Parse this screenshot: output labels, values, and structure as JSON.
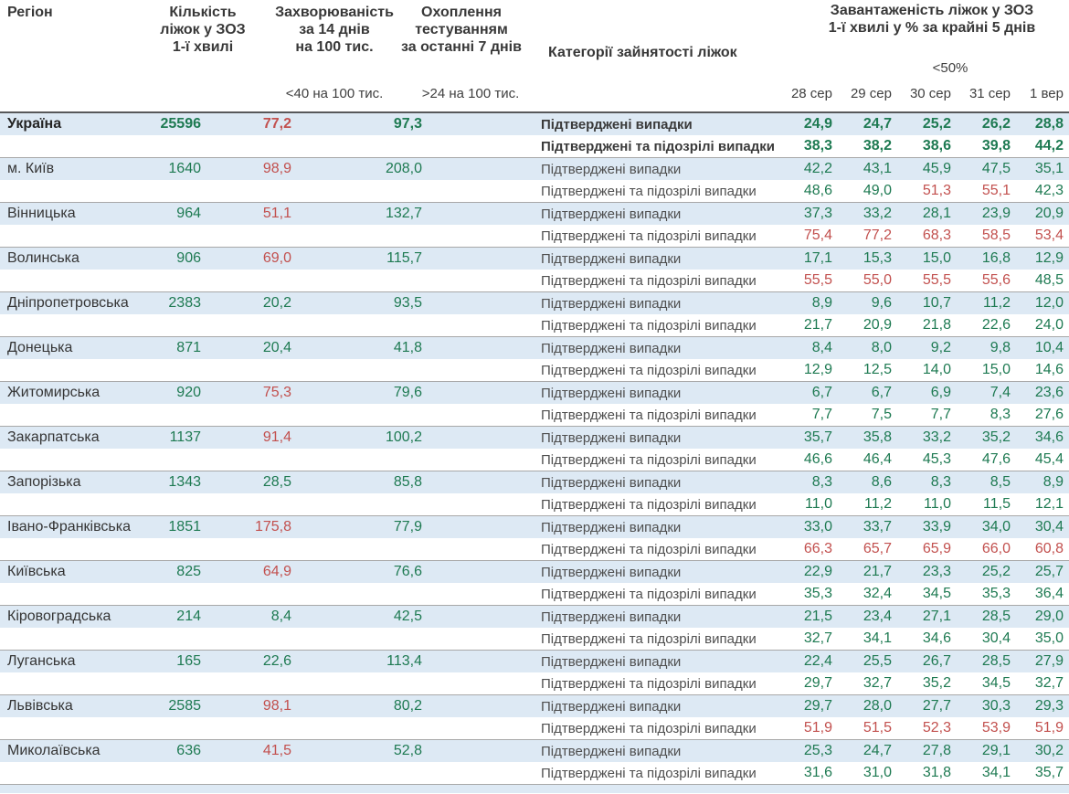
{
  "header": {
    "region": "Регіон",
    "beds_lines": [
      "Кількість",
      "ліжок у ЗОЗ",
      "1-ї хвилі"
    ],
    "incidence_lines": [
      "Захворюваність",
      "за 14 днів",
      "на 100 тис."
    ],
    "testing_lines": [
      "Охоплення",
      "тестуванням",
      "за останні 7 днів"
    ],
    "categories": "Категорії зайнятості ліжок",
    "occupancy_lines": [
      "Завантаженість ліжок у ЗОЗ",
      "1-ї хвилі у % за крайні 5 днів"
    ],
    "incidence_threshold": "<40 на 100 тис.",
    "testing_threshold": ">24 на 100 тис.",
    "occupancy_threshold": "<50%",
    "dates": [
      "28 сер",
      "29 сер",
      "30 сер",
      "31 сер",
      "1 вер"
    ]
  },
  "category_labels": {
    "confirmed": "Підтверджені випадки",
    "confirmed_suspected": "Підтверджені та підозрілі випадки"
  },
  "colors": {
    "ok": "#1e7a52",
    "alert": "#c2504e",
    "band": "#dde9f4",
    "separator": "#a8a8a8",
    "header_rule": "#57585a"
  },
  "rows": [
    {
      "name": "Україна",
      "bold": true,
      "beds": "25596",
      "incidence": "77,2",
      "incidence_color": "alert",
      "testing": "97,3",
      "confirmed": [
        "24,9",
        "24,7",
        "25,2",
        "26,2",
        "28,8"
      ],
      "confirmed_colors": [
        "ok",
        "ok",
        "ok",
        "ok",
        "ok"
      ],
      "suspected": [
        "38,3",
        "38,2",
        "38,6",
        "39,8",
        "44,2"
      ],
      "suspected_colors": [
        "ok",
        "ok",
        "ok",
        "ok",
        "ok"
      ]
    },
    {
      "name": "м. Київ",
      "bold": false,
      "beds": "1640",
      "incidence": "98,9",
      "incidence_color": "alert",
      "testing": "208,0",
      "confirmed": [
        "42,2",
        "43,1",
        "45,9",
        "47,5",
        "35,1"
      ],
      "confirmed_colors": [
        "ok",
        "ok",
        "ok",
        "ok",
        "ok"
      ],
      "suspected": [
        "48,6",
        "49,0",
        "51,3",
        "55,1",
        "42,3"
      ],
      "suspected_colors": [
        "ok",
        "ok",
        "alert",
        "alert",
        "ok"
      ]
    },
    {
      "name": "Вінницька",
      "bold": false,
      "beds": "964",
      "incidence": "51,1",
      "incidence_color": "alert",
      "testing": "132,7",
      "confirmed": [
        "37,3",
        "33,2",
        "28,1",
        "23,9",
        "20,9"
      ],
      "confirmed_colors": [
        "ok",
        "ok",
        "ok",
        "ok",
        "ok"
      ],
      "suspected": [
        "75,4",
        "77,2",
        "68,3",
        "58,5",
        "53,4"
      ],
      "suspected_colors": [
        "alert",
        "alert",
        "alert",
        "alert",
        "alert"
      ]
    },
    {
      "name": "Волинська",
      "bold": false,
      "beds": "906",
      "incidence": "69,0",
      "incidence_color": "alert",
      "testing": "115,7",
      "confirmed": [
        "17,1",
        "15,3",
        "15,0",
        "16,8",
        "12,9"
      ],
      "confirmed_colors": [
        "ok",
        "ok",
        "ok",
        "ok",
        "ok"
      ],
      "suspected": [
        "55,5",
        "55,0",
        "55,5",
        "55,6",
        "48,5"
      ],
      "suspected_colors": [
        "alert",
        "alert",
        "alert",
        "alert",
        "ok"
      ]
    },
    {
      "name": "Дніпропетровська",
      "bold": false,
      "beds": "2383",
      "incidence": "20,2",
      "incidence_color": "ok",
      "testing": "93,5",
      "confirmed": [
        "8,9",
        "9,6",
        "10,7",
        "11,2",
        "12,0"
      ],
      "confirmed_colors": [
        "ok",
        "ok",
        "ok",
        "ok",
        "ok"
      ],
      "suspected": [
        "21,7",
        "20,9",
        "21,8",
        "22,6",
        "24,0"
      ],
      "suspected_colors": [
        "ok",
        "ok",
        "ok",
        "ok",
        "ok"
      ]
    },
    {
      "name": "Донецька",
      "bold": false,
      "beds": "871",
      "incidence": "20,4",
      "incidence_color": "ok",
      "testing": "41,8",
      "confirmed": [
        "8,4",
        "8,0",
        "9,2",
        "9,8",
        "10,4"
      ],
      "confirmed_colors": [
        "ok",
        "ok",
        "ok",
        "ok",
        "ok"
      ],
      "suspected": [
        "12,9",
        "12,5",
        "14,0",
        "15,0",
        "14,6"
      ],
      "suspected_colors": [
        "ok",
        "ok",
        "ok",
        "ok",
        "ok"
      ]
    },
    {
      "name": "Житомирська",
      "bold": false,
      "beds": "920",
      "incidence": "75,3",
      "incidence_color": "alert",
      "testing": "79,6",
      "confirmed": [
        "6,7",
        "6,7",
        "6,9",
        "7,4",
        "23,6"
      ],
      "confirmed_colors": [
        "ok",
        "ok",
        "ok",
        "ok",
        "ok"
      ],
      "suspected": [
        "7,7",
        "7,5",
        "7,7",
        "8,3",
        "27,6"
      ],
      "suspected_colors": [
        "ok",
        "ok",
        "ok",
        "ok",
        "ok"
      ]
    },
    {
      "name": "Закарпатська",
      "bold": false,
      "beds": "1137",
      "incidence": "91,4",
      "incidence_color": "alert",
      "testing": "100,2",
      "confirmed": [
        "35,7",
        "35,8",
        "33,2",
        "35,2",
        "34,6"
      ],
      "confirmed_colors": [
        "ok",
        "ok",
        "ok",
        "ok",
        "ok"
      ],
      "suspected": [
        "46,6",
        "46,4",
        "45,3",
        "47,6",
        "45,4"
      ],
      "suspected_colors": [
        "ok",
        "ok",
        "ok",
        "ok",
        "ok"
      ]
    },
    {
      "name": "Запорізька",
      "bold": false,
      "beds": "1343",
      "incidence": "28,5",
      "incidence_color": "ok",
      "testing": "85,8",
      "confirmed": [
        "8,3",
        "8,6",
        "8,3",
        "8,5",
        "8,9"
      ],
      "confirmed_colors": [
        "ok",
        "ok",
        "ok",
        "ok",
        "ok"
      ],
      "suspected": [
        "11,0",
        "11,2",
        "11,0",
        "11,5",
        "12,1"
      ],
      "suspected_colors": [
        "ok",
        "ok",
        "ok",
        "ok",
        "ok"
      ]
    },
    {
      "name": "Івано-Франківська",
      "bold": false,
      "beds": "1851",
      "incidence": "175,8",
      "incidence_color": "alert",
      "testing": "77,9",
      "confirmed": [
        "33,0",
        "33,7",
        "33,9",
        "34,0",
        "30,4"
      ],
      "confirmed_colors": [
        "ok",
        "ok",
        "ok",
        "ok",
        "ok"
      ],
      "suspected": [
        "66,3",
        "65,7",
        "65,9",
        "66,0",
        "60,8"
      ],
      "suspected_colors": [
        "alert",
        "alert",
        "alert",
        "alert",
        "alert"
      ]
    },
    {
      "name": "Київська",
      "bold": false,
      "beds": "825",
      "incidence": "64,9",
      "incidence_color": "alert",
      "testing": "76,6",
      "confirmed": [
        "22,9",
        "21,7",
        "23,3",
        "25,2",
        "25,7"
      ],
      "confirmed_colors": [
        "ok",
        "ok",
        "ok",
        "ok",
        "ok"
      ],
      "suspected": [
        "35,3",
        "32,4",
        "34,5",
        "35,3",
        "36,4"
      ],
      "suspected_colors": [
        "ok",
        "ok",
        "ok",
        "ok",
        "ok"
      ]
    },
    {
      "name": "Кіровоградська",
      "bold": false,
      "beds": "214",
      "incidence": "8,4",
      "incidence_color": "ok",
      "testing": "42,5",
      "confirmed": [
        "21,5",
        "23,4",
        "27,1",
        "28,5",
        "29,0"
      ],
      "confirmed_colors": [
        "ok",
        "ok",
        "ok",
        "ok",
        "ok"
      ],
      "suspected": [
        "32,7",
        "34,1",
        "34,6",
        "30,4",
        "35,0"
      ],
      "suspected_colors": [
        "ok",
        "ok",
        "ok",
        "ok",
        "ok"
      ]
    },
    {
      "name": "Луганська",
      "bold": false,
      "beds": "165",
      "incidence": "22,6",
      "incidence_color": "ok",
      "testing": "113,4",
      "confirmed": [
        "22,4",
        "25,5",
        "26,7",
        "28,5",
        "27,9"
      ],
      "confirmed_colors": [
        "ok",
        "ok",
        "ok",
        "ok",
        "ok"
      ],
      "suspected": [
        "29,7",
        "32,7",
        "35,2",
        "34,5",
        "32,7"
      ],
      "suspected_colors": [
        "ok",
        "ok",
        "ok",
        "ok",
        "ok"
      ]
    },
    {
      "name": "Львівська",
      "bold": false,
      "beds": "2585",
      "incidence": "98,1",
      "incidence_color": "alert",
      "testing": "80,2",
      "confirmed": [
        "29,7",
        "28,0",
        "27,7",
        "30,3",
        "29,3"
      ],
      "confirmed_colors": [
        "ok",
        "ok",
        "ok",
        "ok",
        "ok"
      ],
      "suspected": [
        "51,9",
        "51,5",
        "52,3",
        "53,9",
        "51,9"
      ],
      "suspected_colors": [
        "alert",
        "alert",
        "alert",
        "alert",
        "alert"
      ]
    },
    {
      "name": "Миколаївська",
      "bold": false,
      "beds": "636",
      "incidence": "41,5",
      "incidence_color": "alert",
      "testing": "52,8",
      "confirmed": [
        "25,3",
        "24,7",
        "27,8",
        "29,1",
        "30,2"
      ],
      "confirmed_colors": [
        "ok",
        "ok",
        "ok",
        "ok",
        "ok"
      ],
      "suspected": [
        "31,6",
        "31,0",
        "31,8",
        "34,1",
        "35,7"
      ],
      "suspected_colors": [
        "ok",
        "ok",
        "ok",
        "ok",
        "ok"
      ]
    }
  ]
}
